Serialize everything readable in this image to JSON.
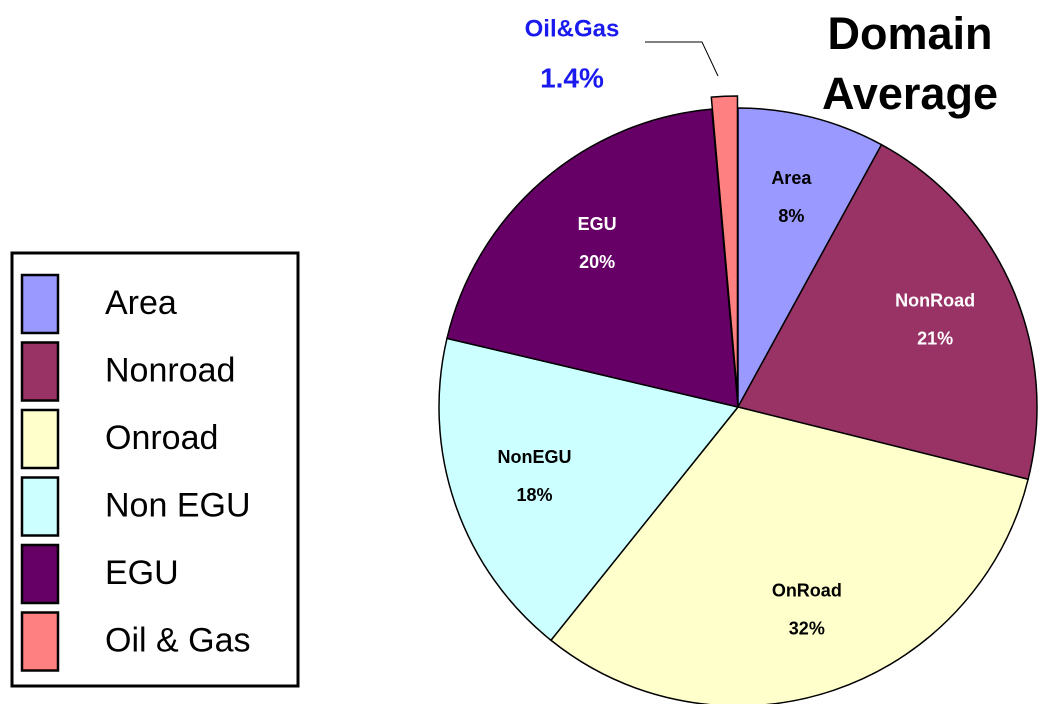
{
  "chart_data": {
    "type": "pie",
    "title": "Domain Average",
    "categories": [
      "Area",
      "Nonroad",
      "Onroad",
      "Non EGU",
      "EGU",
      "Oil & Gas"
    ],
    "slice_labels": [
      "Area",
      "NonRoad",
      "OnRoad",
      "NonEGU",
      "EGU",
      "Oil&Gas"
    ],
    "values": [
      8,
      21,
      32,
      18,
      20,
      1.4
    ],
    "value_labels": [
      "8%",
      "21%",
      "32%",
      "18%",
      "20%",
      "1.4%"
    ],
    "colors": [
      "#9999ff",
      "#993366",
      "#ffffcc",
      "#ccffff",
      "#660066",
      "#ff8080"
    ],
    "explode": [
      false,
      false,
      false,
      false,
      false,
      true
    ],
    "legend": "left"
  }
}
